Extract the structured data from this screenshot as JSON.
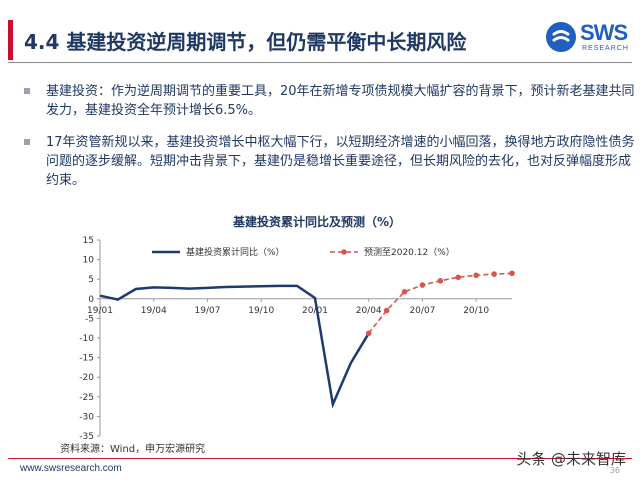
{
  "header": {
    "title": "4.4 基建投资逆周期调节，但仍需平衡中长期风险",
    "logo_text": "SWS",
    "logo_subtext": "RESEARCH",
    "accent_color": "#c8102e",
    "title_color": "#1f3864"
  },
  "bullets": [
    {
      "text": "基建投资：作为逆周期调节的重要工具，20年在新增专项债规模大幅扩容的背景下，预计新老基建共同发力，基建投资全年预计增长6.5%。"
    },
    {
      "text": "17年资管新规以来，基建投资增长中枢大幅下行，以短期经济增速的小幅回落，换得地方政府隐性债务问题的逐步缓解。短期冲击背景下，基建仍是稳增长重要途径，但长期风险的去化，也对反弹幅度形成约束。"
    }
  ],
  "chart_data": {
    "type": "line",
    "title": "基建投资累计同比及预测（%）",
    "source": "资料来源：Wind，申万宏源研究",
    "ylim": [
      -35,
      15
    ],
    "yticks": [
      "15",
      "10",
      "5",
      "0",
      "-5",
      "-10",
      "-15",
      "-20",
      "-25",
      "-30",
      "-35"
    ],
    "x_tick_labels": [
      "19/01",
      "19/04",
      "19/07",
      "19/10",
      "20/01",
      "20/04",
      "20/07",
      "20/10"
    ],
    "x_tick_months": [
      0,
      3,
      6,
      9,
      12,
      15,
      18,
      21
    ],
    "legend_position": "top",
    "series": [
      {
        "name": "基建投资累计同比（%）",
        "color": "#1f3a6e",
        "style": "solid",
        "months": [
          0,
          1,
          2,
          3,
          4,
          5,
          6,
          7,
          8,
          9,
          10,
          11,
          12,
          13,
          14,
          15
        ],
        "values": [
          0.8,
          -0.2,
          2.5,
          2.9,
          2.8,
          2.6,
          2.8,
          3.0,
          3.1,
          3.2,
          3.3,
          3.3,
          0.2,
          -26.9,
          -16.4,
          -8.8
        ]
      },
      {
        "name": "预测至2020.12（%）",
        "color": "#d9534f",
        "style": "dashed",
        "months": [
          15,
          16,
          17,
          18,
          19,
          20,
          21,
          22,
          23
        ],
        "values": [
          -8.8,
          -3.0,
          1.8,
          3.5,
          4.6,
          5.5,
          6.0,
          6.3,
          6.5
        ]
      }
    ]
  },
  "footer": {
    "url": "www.swsresearch.com",
    "watermark": "头条 @未来智库",
    "page_number": "36"
  }
}
